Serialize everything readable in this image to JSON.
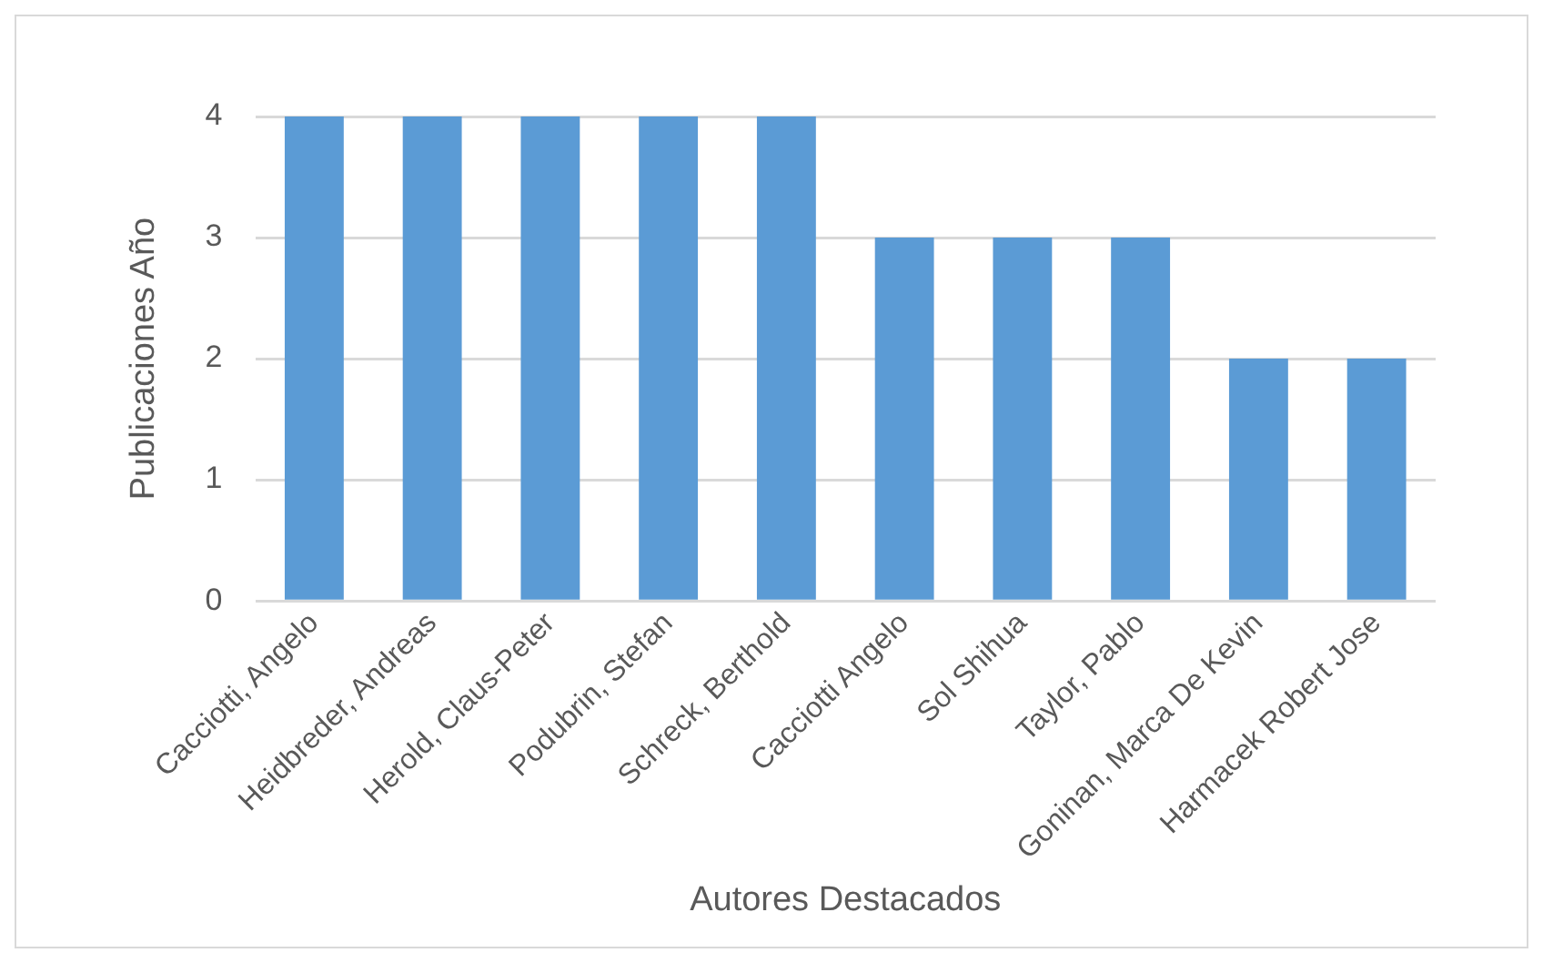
{
  "chart_data": {
    "type": "bar",
    "xlabel": "Autores Destacados",
    "ylabel": "Publicaciones Año",
    "categories": [
      "Cacciotti, Angelo",
      "Heidbreder, Andreas",
      "Herold, Claus-Peter",
      "Podubrin, Stefan",
      "Schreck, Berthold",
      "Cacciotti Angelo",
      "Sol Shihua",
      "Taylor, Pablo",
      "Goninan, Marca De Kevin",
      "Harmacek Robert Jose"
    ],
    "values": [
      4,
      4,
      4,
      4,
      4,
      3,
      3,
      3,
      2,
      2
    ],
    "color": "#5b9bd5",
    "ylim": [
      0,
      4
    ],
    "yticks": [
      0,
      1,
      2,
      3,
      4
    ],
    "grid": "y",
    "legend": false
  }
}
